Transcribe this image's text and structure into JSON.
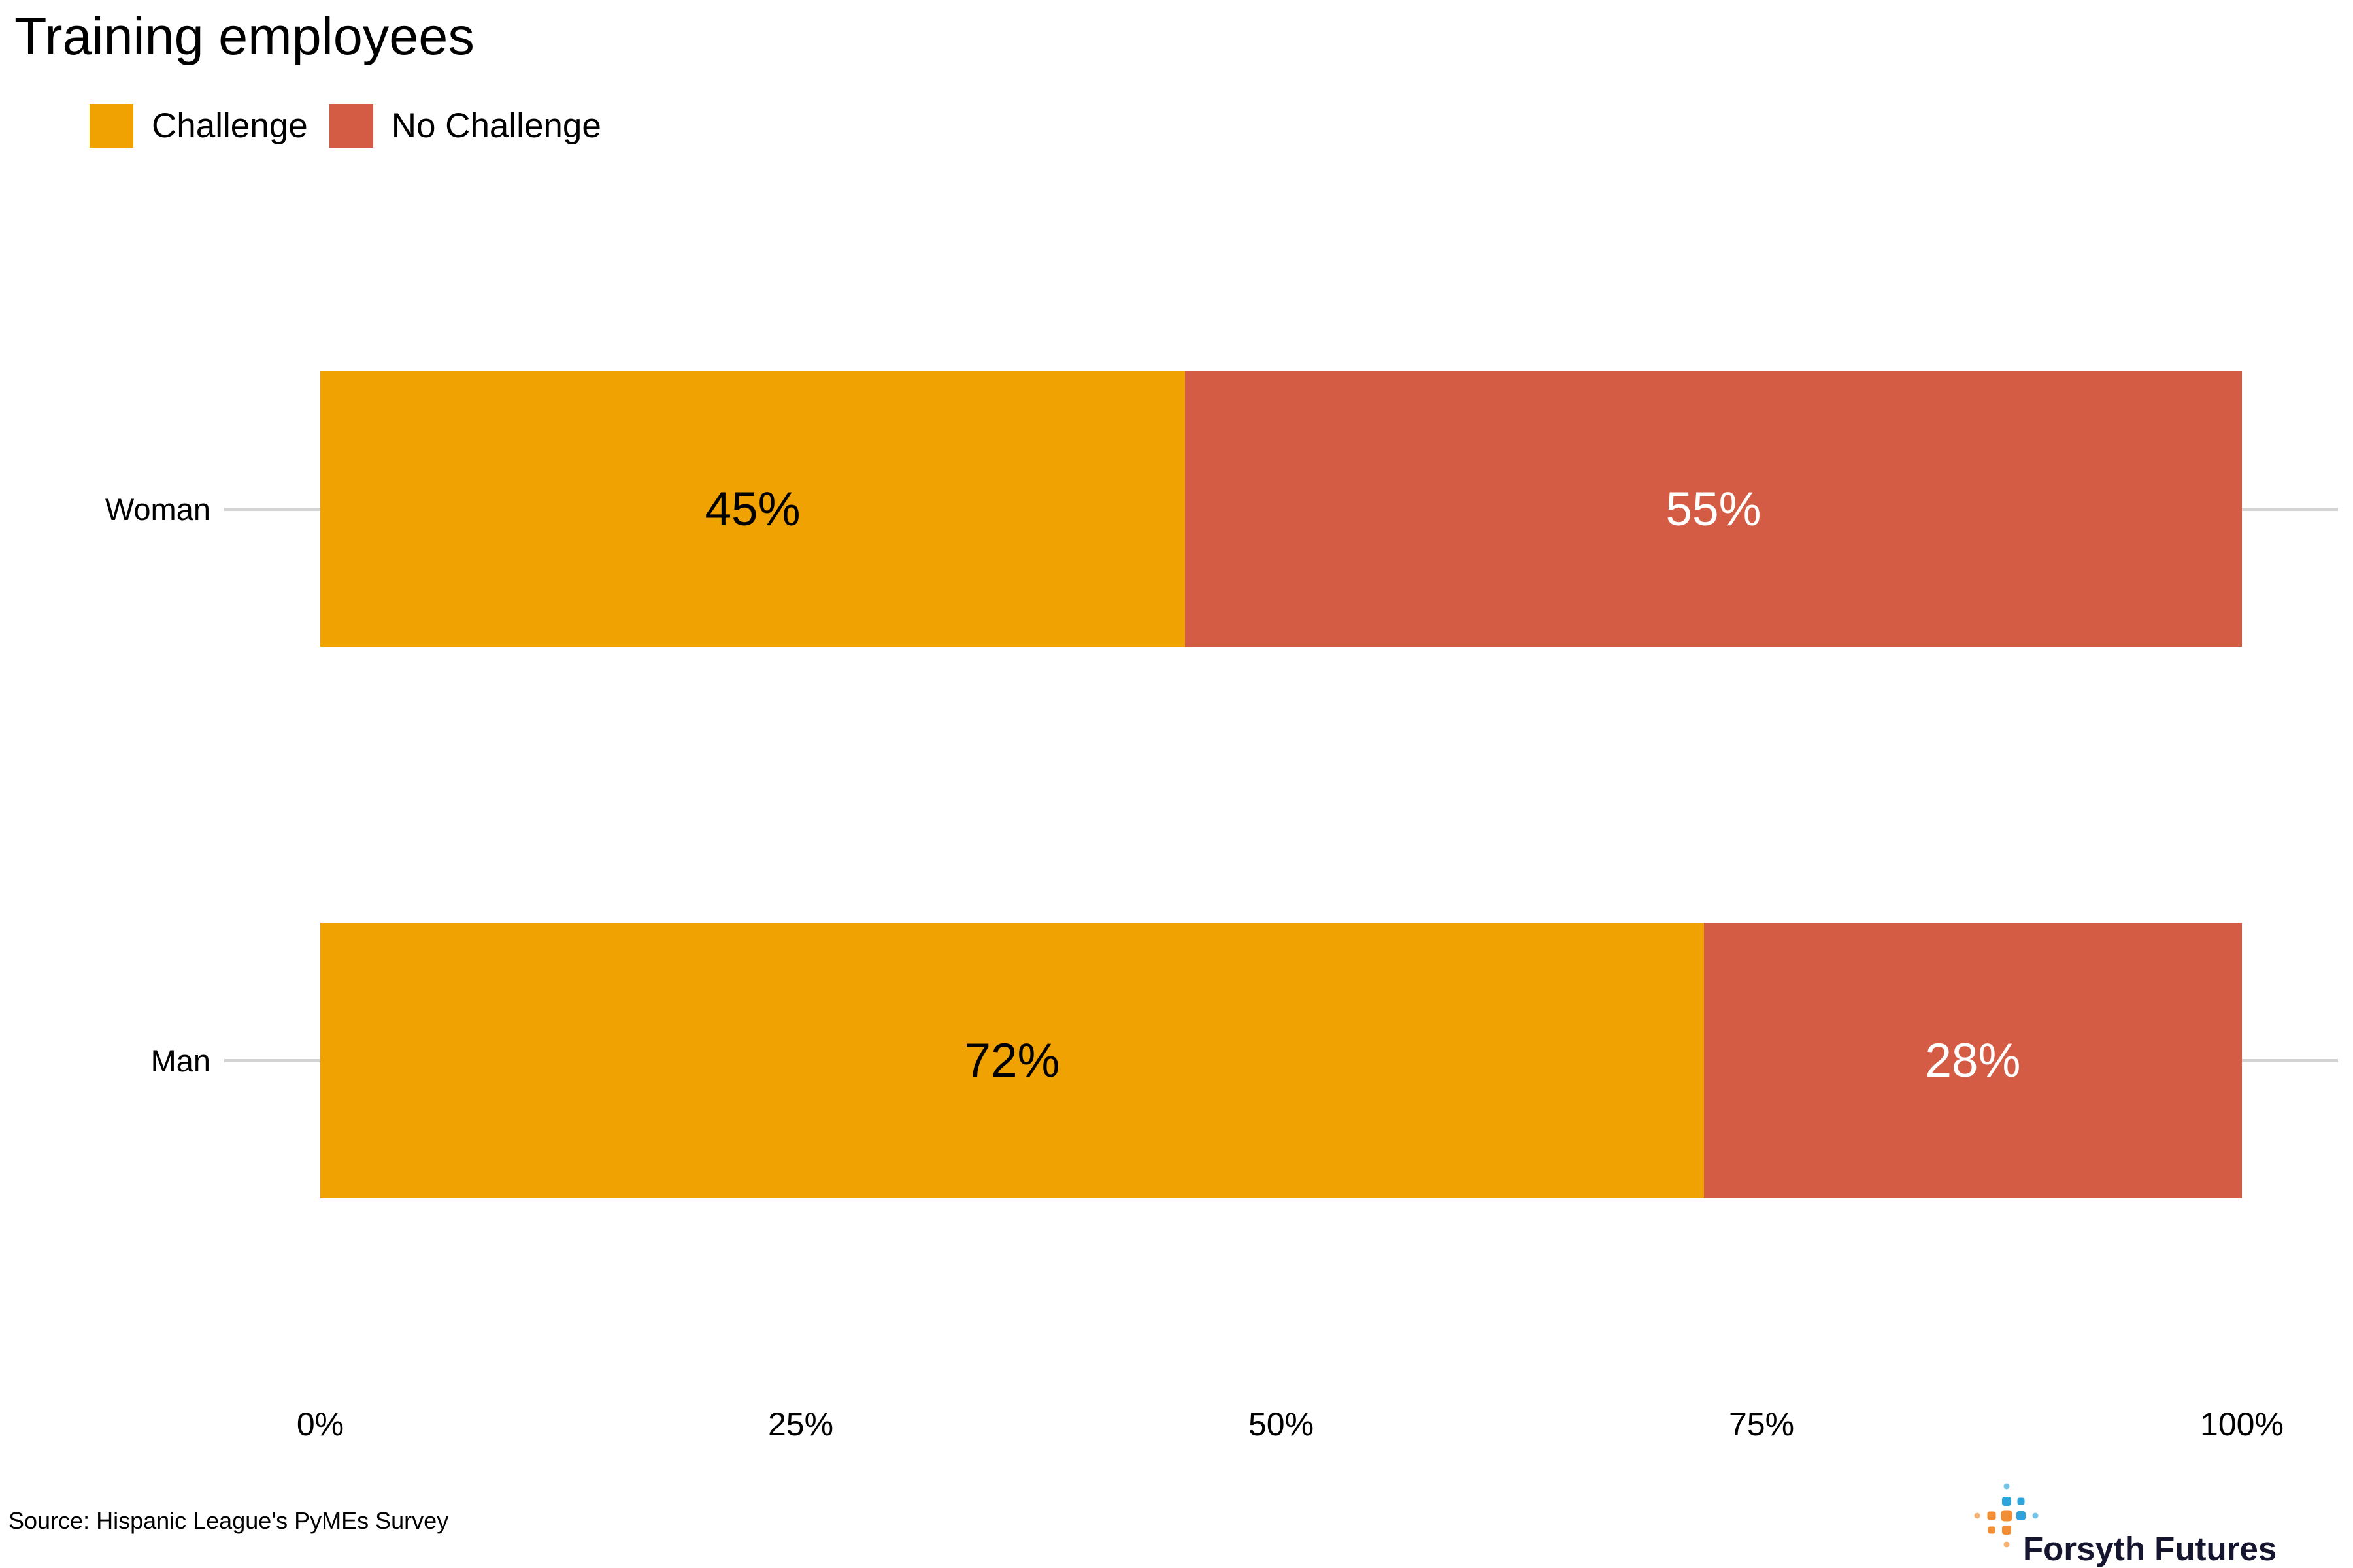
{
  "title": "Training employees",
  "legend": {
    "challenge": "Challenge",
    "no_challenge": "No Challenge"
  },
  "colors": {
    "challenge": "#F0A202",
    "no_challenge": "#D55C44",
    "gridline": "#D3D3D3",
    "label_on_challenge": "#000000",
    "label_on_no_challenge": "#FFFFFF"
  },
  "chart_data": {
    "type": "bar",
    "orientation": "horizontal",
    "stacked": true,
    "title": "Training employees",
    "categories": [
      "Woman",
      "Man"
    ],
    "series": [
      {
        "name": "Challenge",
        "values": [
          45,
          72
        ]
      },
      {
        "name": "No Challenge",
        "values": [
          55,
          28
        ]
      }
    ],
    "value_label_format": "percent",
    "xlim": [
      0,
      100
    ],
    "x_ticks": [
      0,
      25,
      50,
      75,
      100
    ],
    "x_tick_labels": [
      "0%",
      "25%",
      "50%",
      "75%",
      "100%"
    ],
    "grid": "category lines only, no vertical gridlines",
    "legend_position": "top-left"
  },
  "source": "Source: Hispanic League's PyMEs Survey",
  "logo": {
    "text": "Forsyth Futures",
    "blue": "#2EA5DA",
    "blue_light": "#74C2E6",
    "orange": "#F28E35",
    "orange_light": "#F6B273",
    "text_color": "#15152F"
  }
}
